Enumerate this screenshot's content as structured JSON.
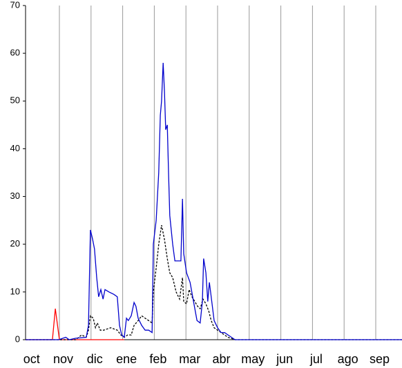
{
  "chart_data": {
    "type": "line",
    "categories": [
      "oct",
      "nov",
      "dic",
      "ene",
      "feb",
      "mar",
      "abr",
      "may",
      "jun",
      "jul",
      "ago",
      "sep"
    ],
    "xlim": [
      -0.07,
      11.83
    ],
    "xticks": [
      1,
      2,
      3,
      4,
      5,
      6,
      7,
      8,
      9,
      10,
      11
    ],
    "ylim": [
      0,
      70
    ],
    "yticks": [
      0,
      10,
      20,
      30,
      40,
      50,
      60,
      70
    ],
    "grid": true,
    "series": [
      {
        "color": "#ff0000",
        "dash": false,
        "x": [
          -0.07,
          0.78,
          0.87,
          1.0,
          3.05
        ],
        "values": [
          0,
          0,
          6.5,
          0,
          0
        ]
      },
      {
        "color": "#000000",
        "dash": true,
        "x": [
          -0.07,
          1.52,
          1.7,
          1.85,
          1.92,
          1.98,
          2.07,
          2.14,
          2.2,
          2.29,
          2.4,
          2.62,
          2.83,
          2.94,
          3.05,
          3.16,
          3.27,
          3.36,
          3.49,
          3.6,
          3.71,
          3.82,
          3.93,
          3.97,
          4.06,
          4.14,
          4.23,
          4.32,
          4.41,
          4.49,
          4.58,
          4.69,
          4.8,
          4.89,
          4.93,
          5.02,
          5.1,
          5.19,
          5.28,
          5.37,
          5.45,
          5.54,
          5.63,
          5.72,
          5.8,
          5.89,
          6.0,
          6.11,
          6.22,
          6.33,
          6.55,
          11.83
        ],
        "values": [
          0,
          0,
          1,
          0.5,
          2,
          5,
          4.5,
          2.5,
          3.5,
          2,
          2,
          2.5,
          2,
          1,
          0.5,
          1,
          1,
          3,
          4,
          5,
          4.5,
          4,
          3.5,
          10,
          15,
          20,
          24,
          21,
          17,
          14,
          13,
          10,
          8.5,
          13,
          8,
          7.5,
          10.5,
          9,
          8,
          7,
          6.5,
          8.5,
          7.5,
          6,
          4,
          2.5,
          2,
          1.5,
          1,
          0.5,
          0,
          0
        ]
      },
      {
        "color": "#0000cc",
        "dash": false,
        "x": [
          -0.07,
          0.98,
          1.2,
          1.31,
          1.52,
          1.85,
          1.92,
          1.98,
          2.05,
          2.11,
          2.18,
          2.24,
          2.31,
          2.38,
          2.44,
          2.57,
          2.72,
          2.83,
          2.9,
          2.97,
          3.05,
          3.12,
          3.18,
          3.27,
          3.36,
          3.42,
          3.49,
          3.6,
          3.71,
          3.82,
          3.93,
          3.97,
          4.06,
          4.14,
          4.19,
          4.23,
          4.28,
          4.32,
          4.36,
          4.41,
          4.45,
          4.49,
          4.58,
          4.65,
          4.76,
          4.84,
          4.89,
          4.93,
          5.02,
          5.13,
          5.24,
          5.35,
          5.45,
          5.52,
          5.56,
          5.63,
          5.69,
          5.74,
          5.78,
          5.89,
          6.0,
          6.11,
          6.22,
          6.33,
          6.44,
          6.55,
          11.83
        ],
        "values": [
          0,
          0,
          0.5,
          0,
          0.3,
          0.5,
          3,
          23,
          21,
          19,
          13,
          9,
          10.5,
          8.5,
          10.5,
          10,
          9.5,
          9,
          3,
          1,
          0.5,
          4.5,
          4,
          5,
          7.8,
          7,
          4.5,
          3,
          2,
          2,
          1.5,
          20,
          25,
          35,
          47,
          50,
          58,
          52,
          44,
          45,
          35,
          26,
          20,
          16.5,
          16.5,
          16.5,
          29.5,
          18,
          14,
          12,
          8,
          4,
          3.5,
          8,
          17,
          14,
          8,
          12,
          10,
          4,
          2.5,
          1.5,
          1.5,
          1,
          0.5,
          0,
          0
        ]
      }
    ]
  }
}
